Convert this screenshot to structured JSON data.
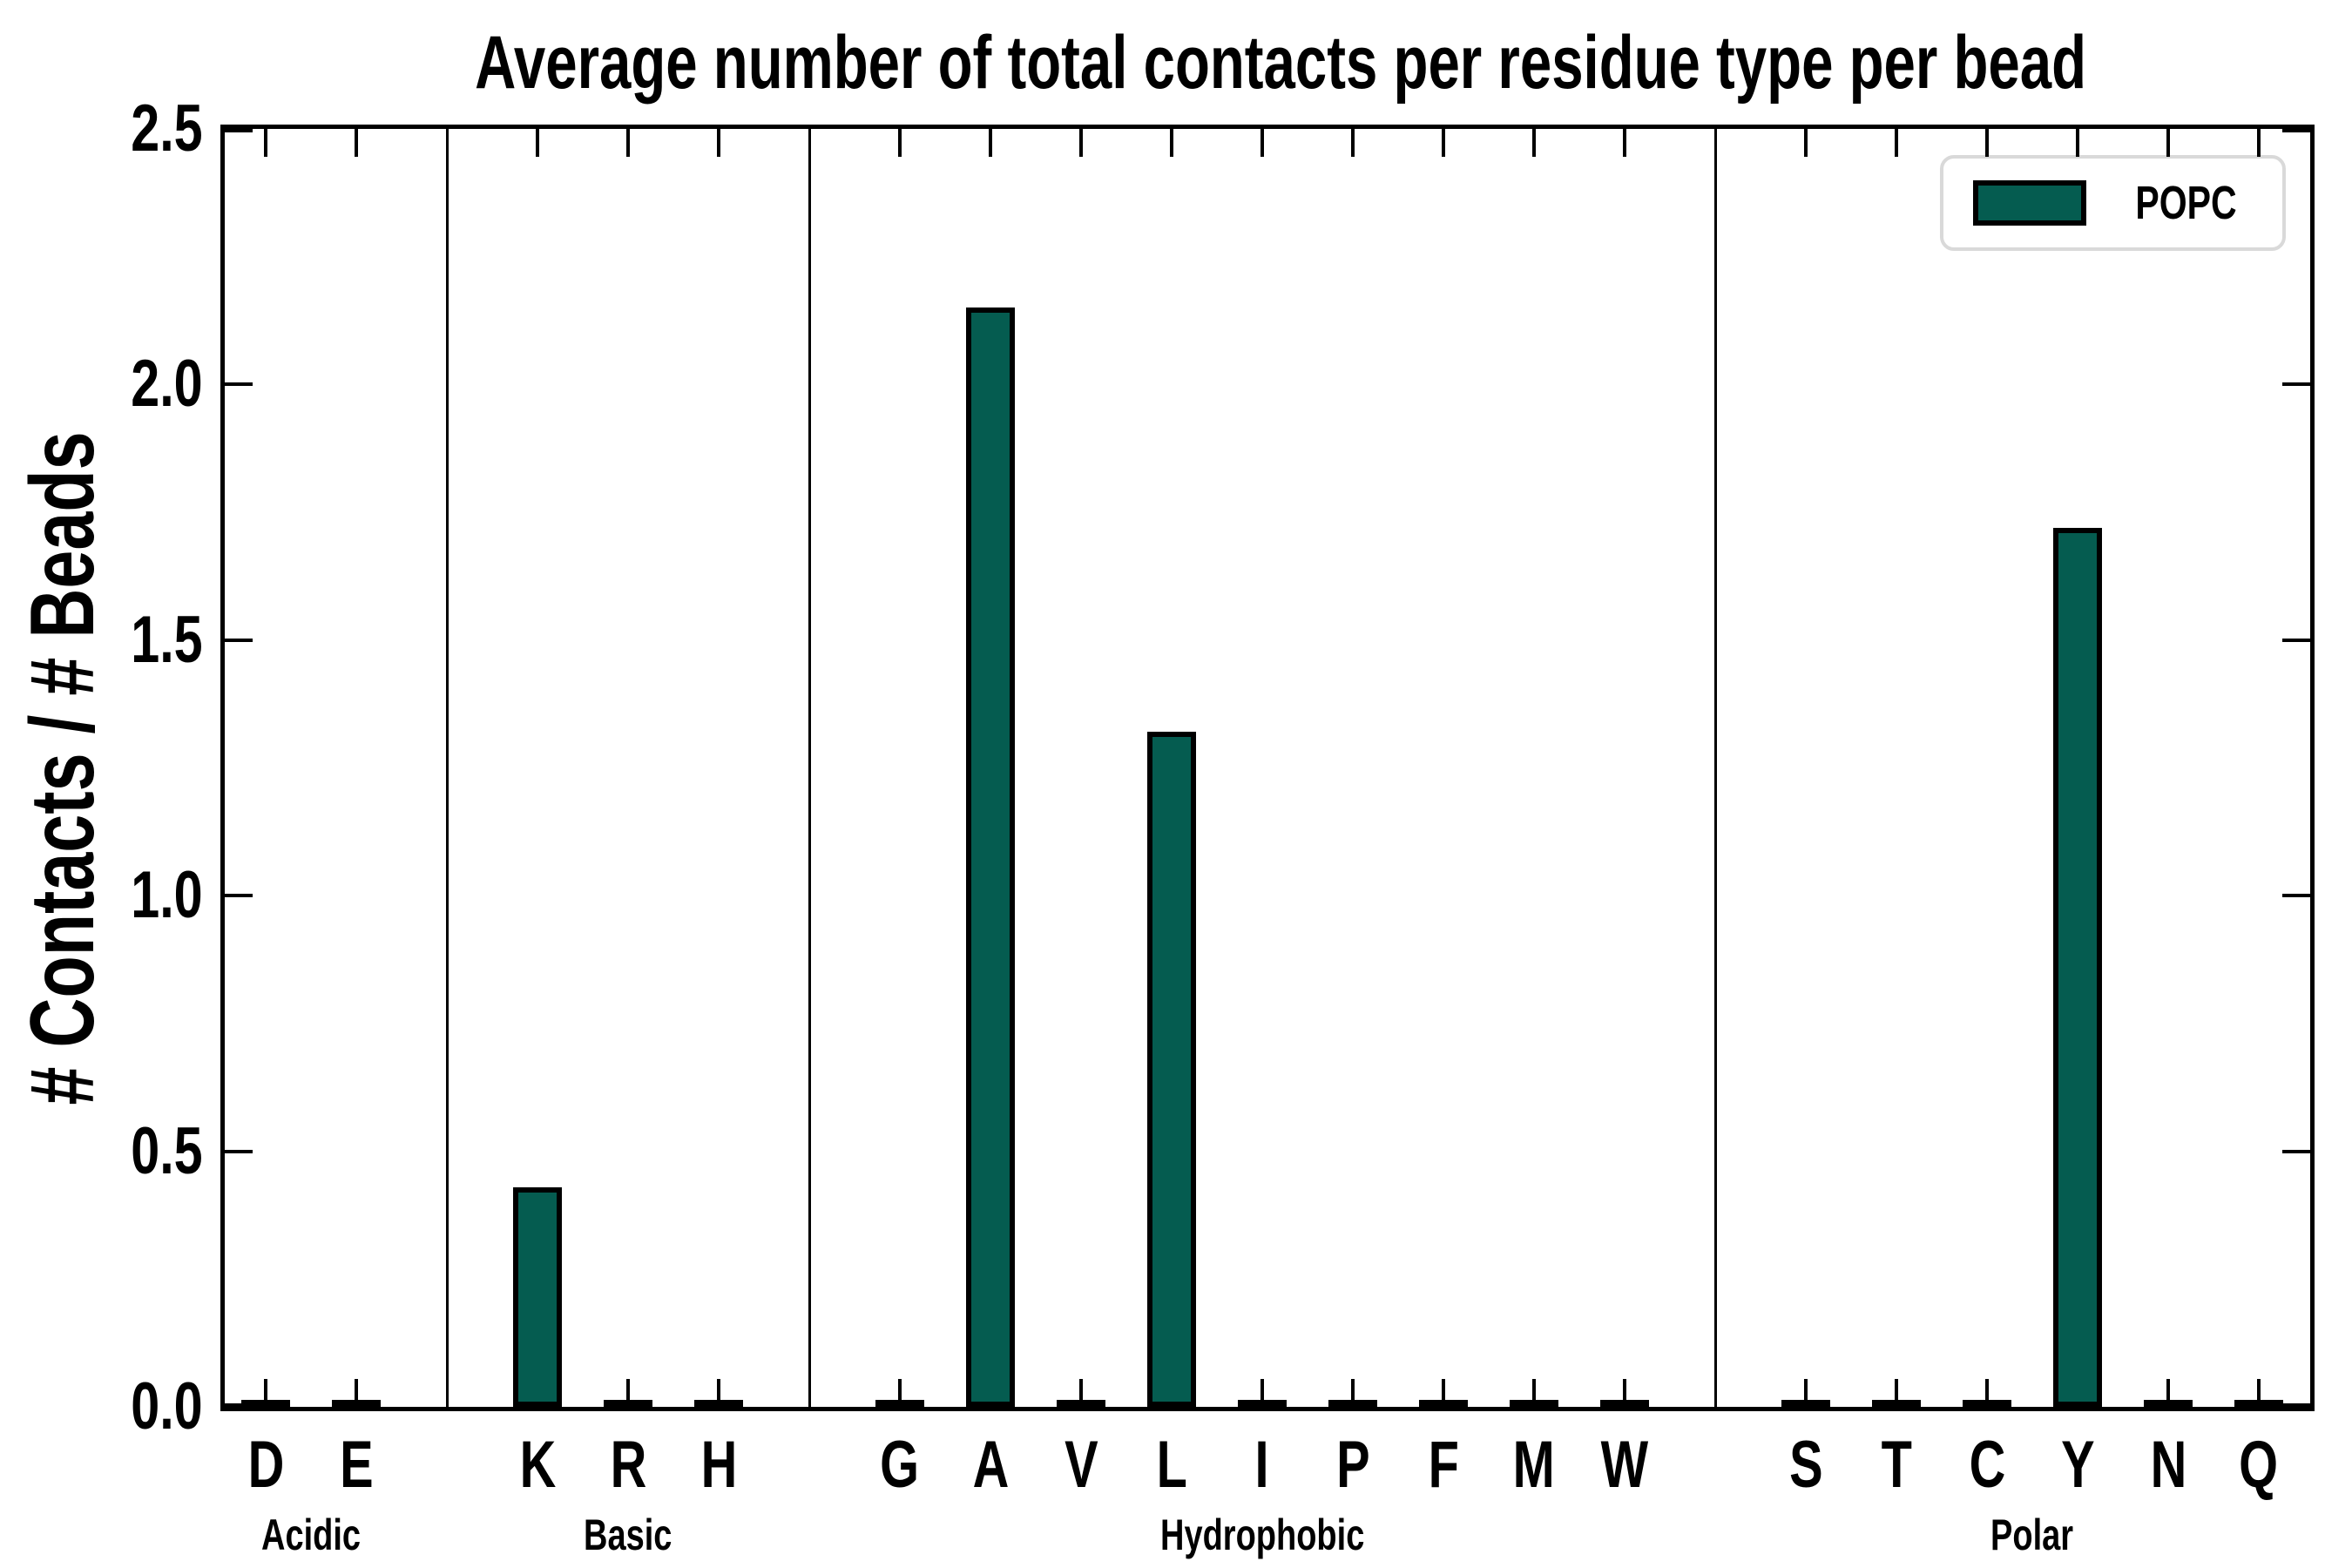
{
  "chart_data": {
    "type": "bar",
    "title": "Average number of total contacts per residue type per bead",
    "ylabel": "# Contacts / # Beads",
    "xlabel": "",
    "ylim": [
      0,
      2.5
    ],
    "yticks": [
      "0.0",
      "0.5",
      "1.0",
      "1.5",
      "2.0",
      "2.5"
    ],
    "ytick_values": [
      0,
      0.5,
      1,
      1.5,
      2,
      2.5
    ],
    "grid": false,
    "tick_direction": "in",
    "group_separator_lines": true,
    "legend": {
      "position": "upper right",
      "entries": [
        "POPC"
      ]
    },
    "groups": [
      {
        "label": "Acidic",
        "categories": [
          "D",
          "E"
        ]
      },
      {
        "label": "Basic",
        "categories": [
          "K",
          "R",
          "H"
        ]
      },
      {
        "label": "Hydrophobic",
        "categories": [
          "G",
          "A",
          "V",
          "L",
          "I",
          "P",
          "F",
          "M",
          "W"
        ]
      },
      {
        "label": "Polar",
        "categories": [
          "S",
          "T",
          "C",
          "Y",
          "N",
          "Q"
        ]
      }
    ],
    "series": [
      {
        "name": "POPC",
        "color": "#055C50",
        "edge_color": "#000000",
        "values_by_category": {
          "D": 0,
          "E": 0,
          "K": 0.43,
          "R": 0,
          "H": 0,
          "G": 0,
          "A": 2.15,
          "V": 0,
          "L": 1.32,
          "I": 0,
          "P": 0,
          "F": 0,
          "M": 0,
          "W": 0,
          "S": 0,
          "T": 0,
          "C": 0,
          "Y": 1.72,
          "N": 0,
          "Q": 0
        }
      }
    ]
  },
  "colors": {
    "bar_fill": "#055C50",
    "bar_edge": "#000000",
    "axis": "#000000",
    "legend_border": "#d9d9d9",
    "background": "#ffffff",
    "text": "#000000"
  }
}
